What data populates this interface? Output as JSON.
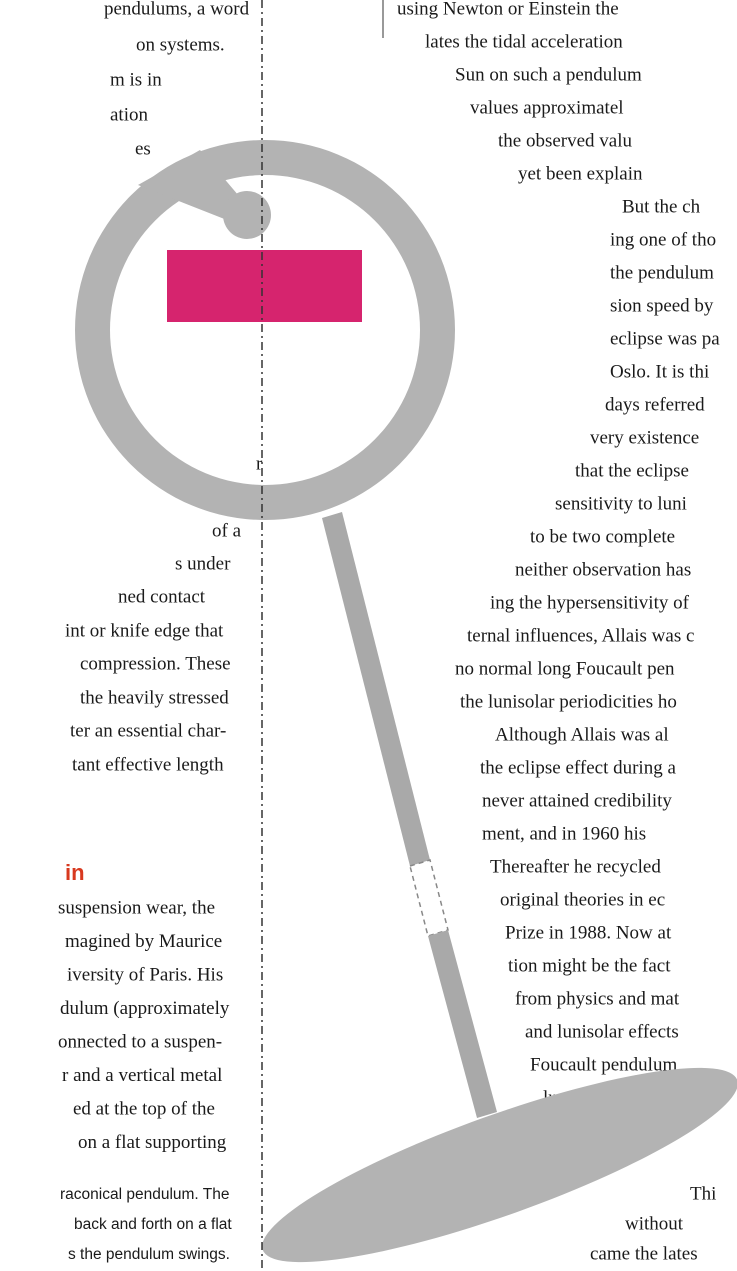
{
  "left_column": {
    "lines": [
      "pendulums, a word",
      "on systems.",
      "m is in",
      "ation",
      "es",
      "r",
      "re",
      "of a",
      "s under",
      "ned contact",
      "int or knife edge that",
      "compression. These",
      "the heavily stressed",
      "ter an essential char-",
      "tant effective length"
    ],
    "heading": "in",
    "paragraph": [
      "suspension wear, the",
      "magined by Maurice",
      "iversity of Paris. His",
      "dulum (approximately",
      "onnected to a suspen-",
      "r and a vertical metal",
      "ed at the top of the",
      "on a flat supporting"
    ],
    "caption": [
      "raconical pendulum. The",
      "back and forth on a flat",
      "s the pendulum swings."
    ]
  },
  "right_column": {
    "lines": [
      "using Newton or Einstein the",
      "lates the tidal acceleration",
      "Sun on such a pendulum",
      "values approximatel",
      "the observed valu",
      "yet been explain",
      "But the ch",
      "ing one of tho",
      "the pendulum",
      "sion speed by",
      "eclipse was pa",
      "Oslo. It is thi",
      "days referred",
      "very existence",
      "that the eclipse",
      "sensitivity to luni",
      "to be two complete",
      "neither observation has",
      "ing the hypersensitivity of",
      "ternal influences, Allais was c",
      "no normal long Foucault pen",
      "the lunisolar periodicities ho",
      "Although Allais was al",
      "the eclipse effect during a",
      "never attained credibility",
      "ment, and in 1960 his",
      "Thereafter he recycled",
      "original theories in ec",
      "Prize in 1988. Now at",
      "tion might be the fact",
      "from physics and mat",
      "and lunisolar effects",
      "Foucault pendulum",
      "lums and gravimete"
    ],
    "end_lines": [
      "Thi",
      "without",
      "came the lates"
    ]
  }
}
